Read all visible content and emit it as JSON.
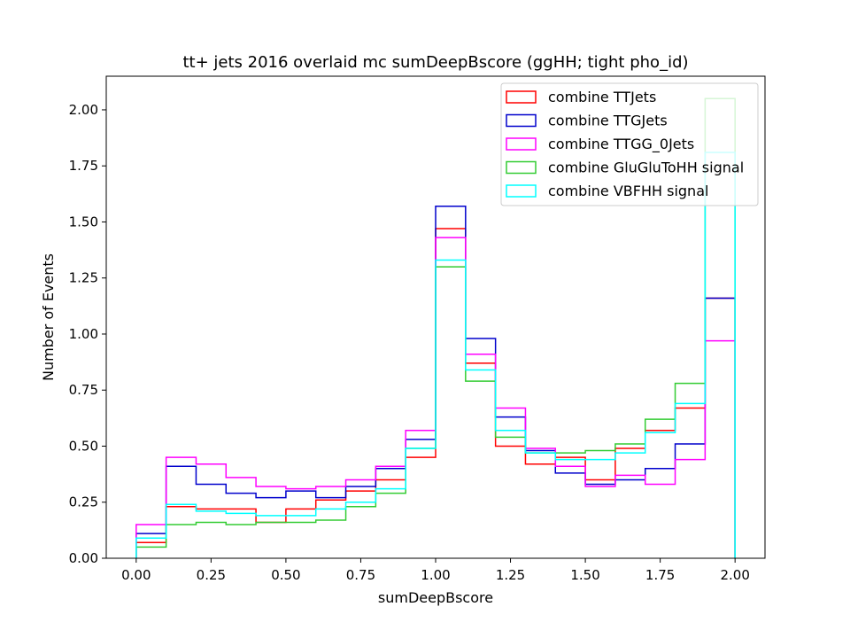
{
  "chart_data": {
    "type": "step-histogram",
    "title": "tt+ jets 2016 overlaid mc sumDeepBscore (ggHH; tight pho_id)",
    "xlabel": "sumDeepBscore",
    "ylabel": "Number of Events",
    "xlim": [
      -0.1,
      2.1
    ],
    "ylim": [
      0,
      2.15
    ],
    "grid": false,
    "legend_position": "top-right",
    "bin_edges": [
      0.0,
      0.1,
      0.2,
      0.3,
      0.4,
      0.5,
      0.6,
      0.7,
      0.8,
      0.9,
      1.0,
      1.1,
      1.2,
      1.3,
      1.4,
      1.5,
      1.6,
      1.7,
      1.8,
      1.9,
      2.0
    ],
    "x_ticks": [
      {
        "value": 0.0,
        "label": "0.00"
      },
      {
        "value": 0.25,
        "label": "0.25"
      },
      {
        "value": 0.5,
        "label": "0.50"
      },
      {
        "value": 0.75,
        "label": "0.75"
      },
      {
        "value": 1.0,
        "label": "1.00"
      },
      {
        "value": 1.25,
        "label": "1.25"
      },
      {
        "value": 1.5,
        "label": "1.50"
      },
      {
        "value": 1.75,
        "label": "1.75"
      },
      {
        "value": 2.0,
        "label": "2.00"
      }
    ],
    "y_ticks": [
      {
        "value": 0.0,
        "label": "0.00"
      },
      {
        "value": 0.25,
        "label": "0.25"
      },
      {
        "value": 0.5,
        "label": "0.50"
      },
      {
        "value": 0.75,
        "label": "0.75"
      },
      {
        "value": 1.0,
        "label": "1.00"
      },
      {
        "value": 1.25,
        "label": "1.25"
      },
      {
        "value": 1.5,
        "label": "1.50"
      },
      {
        "value": 1.75,
        "label": "1.75"
      },
      {
        "value": 2.0,
        "label": "2.00"
      }
    ],
    "series": [
      {
        "name": "combine TTJets",
        "color": "#ff0000",
        "values": [
          0.07,
          0.23,
          0.22,
          0.22,
          0.16,
          0.22,
          0.26,
          0.3,
          0.35,
          0.45,
          1.47,
          0.87,
          0.5,
          0.42,
          0.45,
          0.35,
          0.49,
          0.57,
          0.67,
          1.16
        ]
      },
      {
        "name": "combine TTGJets",
        "color": "#0000cc",
        "values": [
          0.11,
          0.41,
          0.33,
          0.29,
          0.27,
          0.3,
          0.27,
          0.32,
          0.4,
          0.53,
          1.57,
          0.98,
          0.63,
          0.48,
          0.38,
          0.33,
          0.35,
          0.4,
          0.51,
          1.16
        ]
      },
      {
        "name": "combine TTGG_0Jets",
        "color": "#ff00ff",
        "values": [
          0.15,
          0.45,
          0.42,
          0.36,
          0.32,
          0.31,
          0.32,
          0.35,
          0.41,
          0.57,
          1.43,
          0.91,
          0.67,
          0.49,
          0.41,
          0.32,
          0.37,
          0.33,
          0.44,
          0.97
        ]
      },
      {
        "name": "combine GluGluToHH signal",
        "color": "#33cc33",
        "values": [
          0.05,
          0.15,
          0.16,
          0.15,
          0.16,
          0.16,
          0.17,
          0.23,
          0.29,
          0.49,
          1.3,
          0.79,
          0.54,
          0.47,
          0.47,
          0.48,
          0.51,
          0.62,
          0.78,
          2.05
        ]
      },
      {
        "name": "combine VBFHH signal",
        "color": "#00ffff",
        "values": [
          0.09,
          0.24,
          0.21,
          0.2,
          0.19,
          0.19,
          0.22,
          0.25,
          0.31,
          0.49,
          1.33,
          0.84,
          0.57,
          0.47,
          0.44,
          0.44,
          0.47,
          0.56,
          0.69,
          1.81
        ]
      }
    ]
  }
}
